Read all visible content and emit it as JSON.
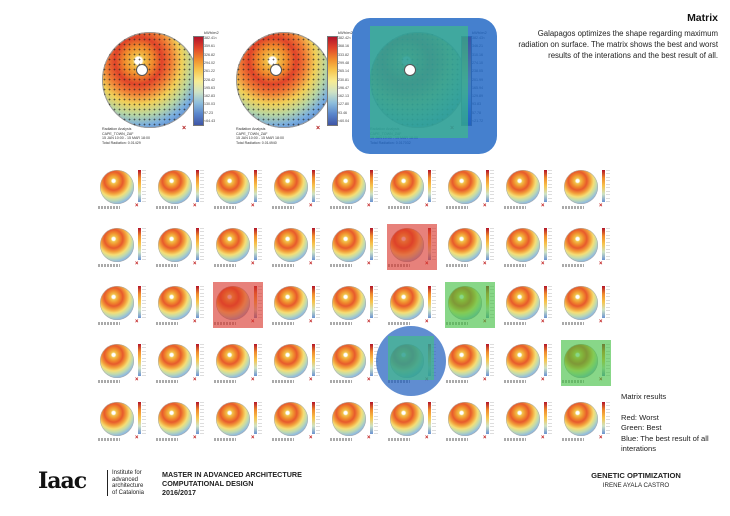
{
  "header": {
    "title": "Matrix",
    "description": "Galapagos optimizes the shape regarding maximum radiation on surface. The matrix shows the best and worst results of the interations and the best result of all."
  },
  "top_plots": [
    {
      "unit": "kWh/m2",
      "ticks": [
        "382.41<",
        "359.61",
        "326.82",
        "294.02",
        "261.22",
        "228.42",
        "195.63",
        "162.83",
        "130.03",
        "97.23",
        "<64.43"
      ],
      "caption": [
        "Radiation Analysis",
        "CAPE_TOWN_ZAF",
        "15 JAN 10:00 - 15 MAR 18:00",
        "Total Radiation: 0.01429"
      ]
    },
    {
      "unit": "kWh/m2",
      "ticks": [
        "382.42<",
        "368.16",
        "333.82",
        "299.48",
        "265.14",
        "230.81",
        "196.47",
        "162.13",
        "127.80",
        "93.46",
        "<60.04"
      ],
      "caption": [
        "Radiation Analysis",
        "CAPE_TOWN_ZAF",
        "15 JAN 10:00 - 15 MAR 18:00",
        "Total Radiation: 0.014940"
      ]
    },
    {
      "unit": "kWh/m2",
      "ticks": [
        "382.43<",
        "346.21",
        "310.16",
        "274.10",
        "238.05",
        "201.99",
        "165.94",
        "129.89",
        "93.83",
        "57.78",
        "<21.72"
      ],
      "caption": [
        "Radiation Analysis",
        "CAPE_TOWN_ZAF",
        "15 JAN 10:00 - 15 MAR 18:00",
        "Total Radiation: 0.017032"
      ]
    }
  ],
  "matrix": {
    "rows": 5,
    "cols": 9,
    "highlights": [
      {
        "row": 1,
        "col": 5,
        "kind": "worst",
        "color": "#d8342a"
      },
      {
        "row": 2,
        "col": 2,
        "kind": "worst",
        "color": "#d8342a"
      },
      {
        "row": 2,
        "col": 6,
        "kind": "best",
        "color": "#3fbf3f"
      },
      {
        "row": 3,
        "col": 8,
        "kind": "best",
        "color": "#3fbf3f"
      },
      {
        "row": 3,
        "col": 5,
        "kind": "best-of-all",
        "color": "#1c5cbe"
      }
    ]
  },
  "legend": {
    "title": "Matrix results",
    "items": [
      {
        "label": "Red: Worst",
        "color": "#d8342a"
      },
      {
        "label": "Green: Best",
        "color": "#3fbf3f"
      },
      {
        "label": "Blue: The best result of all interations",
        "color": "#1c5cbe"
      }
    ]
  },
  "footer": {
    "logo": "Iaac",
    "institute": [
      "Institute for",
      "advanced",
      "architecture",
      "of Catalonia"
    ],
    "program": [
      "MASTER IN ADVANCED ARCHITECTURE",
      "COMPUTATIONAL DESIGN",
      "2016/2017"
    ],
    "topic": "GENETIC OPTIMIZATION",
    "author": "IRENE AYALA CASTRO"
  }
}
